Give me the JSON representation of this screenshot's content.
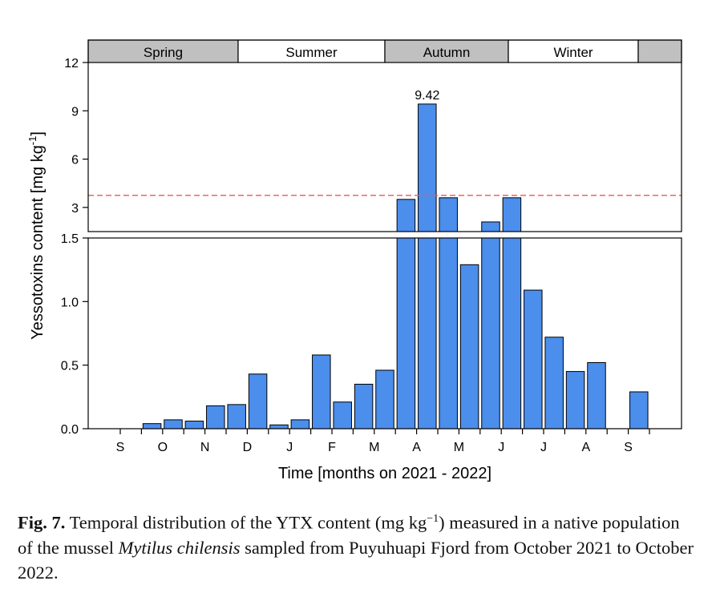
{
  "chart_data": {
    "type": "bar",
    "xlabel": "Time [months on 2021 - 2022]",
    "ylabel": "Yessotoxins content [mg kg",
    "ylabel_sup": "-1",
    "ylabel_close": "]",
    "x_ticks": [
      "S",
      "O",
      "N",
      "D",
      "J",
      "F",
      "M",
      "A",
      "M",
      "J",
      "J",
      "A",
      "S"
    ],
    "seasons": [
      {
        "label": "",
        "shaded": true
      },
      {
        "label": "Spring",
        "shaded": true
      },
      {
        "label": "Summer",
        "shaded": false
      },
      {
        "label": "Autumn",
        "shaded": true
      },
      {
        "label": "Winter",
        "shaded": false
      },
      {
        "label": "",
        "shaded": true
      }
    ],
    "values": [
      0,
      0,
      0.04,
      0.07,
      0.06,
      0.18,
      0.19,
      0.43,
      0.03,
      0.07,
      0.58,
      0.21,
      0.35,
      0.46,
      3.5,
      9.42,
      3.6,
      1.29,
      2.1,
      3.6,
      1.09,
      0.72,
      0.45,
      0.52,
      0,
      0.29
    ],
    "peak_label": "9.42",
    "threshold": 3.75,
    "upper_ylim": [
      1.5,
      12
    ],
    "upper_yticks": [
      "3",
      "6",
      "9",
      "12"
    ],
    "lower_ylim": [
      0,
      1.5
    ],
    "lower_yticks": [
      "0.0",
      "0.5",
      "1.0",
      "1.5"
    ],
    "bar_color": "#4b8eec",
    "threshold_color": "#ee5555",
    "season_shade_color": "#c0c0c0"
  },
  "caption": {
    "fig_label": "Fig. 7.",
    "text_1": " Temporal distribution of the YTX content (mg kg",
    "text_1_sup": "−1",
    "text_2": ") measured in a native population of the mussel ",
    "species": "Mytilus chilensis",
    "text_3": " sampled from Puyuhuapi Fjord from October 2021 to October 2022."
  }
}
